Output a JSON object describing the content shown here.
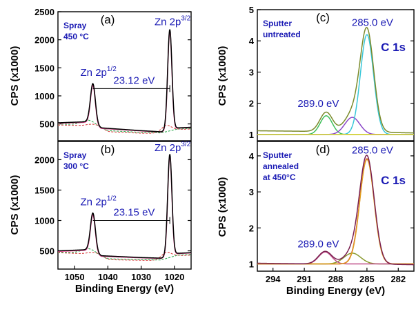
{
  "chart_data": [
    {
      "id": "a",
      "type": "line",
      "panel_label": "(a)",
      "note_lines": [
        "Spray",
        "450 °C"
      ],
      "xlim": [
        1055,
        1015
      ],
      "ylim": [
        200,
        2500
      ],
      "xticks": [],
      "yticks": [
        500,
        1000,
        1500,
        2000,
        2500
      ],
      "ylabel": "",
      "peaks": [
        {
          "name": "Zn 2p",
          "sup": "1/2",
          "x": 1044.5,
          "y": 1260
        },
        {
          "name": "Zn 2p",
          "sup": "3/2",
          "x": 1021.4,
          "y": 2160
        }
      ],
      "separation": "23.12 eV",
      "series": [
        {
          "color": "#000000",
          "baseline": [
            [
              1055,
              520
            ],
            [
              1046,
              540
            ],
            [
              1042,
              430
            ],
            [
              1030,
              380
            ],
            [
              1024,
              360
            ],
            [
              1019,
              430
            ],
            [
              1015,
              440
            ]
          ],
          "peaks": [
            [
              1044.5,
              720,
              0.75
            ],
            [
              1021.4,
              1790,
              0.65
            ]
          ]
        },
        {
          "color": "#e04b8f",
          "baseline": [
            [
              1055,
              510
            ],
            [
              1046,
              530
            ],
            [
              1042,
              420
            ],
            [
              1030,
              375
            ],
            [
              1024,
              355
            ],
            [
              1019,
              425
            ],
            [
              1015,
              435
            ]
          ],
          "peaks": [
            [
              1044.5,
              700,
              0.72
            ],
            [
              1021.4,
              1770,
              0.63
            ]
          ]
        },
        {
          "color": "#2fa84f",
          "dashed": true,
          "baseline": [
            [
              1055,
              500
            ],
            [
              1046,
              480
            ],
            [
              1040,
              380
            ],
            [
              1030,
              350
            ],
            [
              1024,
              340
            ],
            [
              1019,
              410
            ],
            [
              1015,
              420
            ]
          ],
          "peaks": [
            [
              1045.5,
              90,
              2.2
            ]
          ]
        },
        {
          "color": "#d94040",
          "dashed": true,
          "baseline": [
            [
              1055,
              480
            ],
            [
              1046,
              470
            ],
            [
              1040,
              360
            ],
            [
              1030,
              335
            ],
            [
              1024,
              330
            ],
            [
              1019,
              400
            ],
            [
              1015,
              410
            ]
          ],
          "peaks": [
            [
              1043.5,
              60,
              1.8
            ],
            [
              1022.5,
              120,
              1.6
            ]
          ]
        }
      ]
    },
    {
      "id": "b",
      "type": "line",
      "panel_label": "(b)",
      "note_lines": [
        "Spray",
        "300 °C"
      ],
      "xlim": [
        1055,
        1015
      ],
      "ylim": [
        200,
        2300
      ],
      "xticks": [
        1050,
        1040,
        1030,
        1020
      ],
      "yticks": [
        500,
        1000,
        1500,
        2000
      ],
      "xlabel": "Binding Energy (eV)",
      "peaks": [
        {
          "name": "Zn 2p",
          "sup": "1/2",
          "x": 1044.5,
          "y": 1160
        },
        {
          "name": "Zn 2p",
          "sup": "3/2",
          "x": 1021.4,
          "y": 2050
        }
      ],
      "separation": "23.15 eV",
      "series": [
        {
          "color": "#000000",
          "baseline": [
            [
              1055,
              500
            ],
            [
              1046,
              520
            ],
            [
              1042,
              420
            ],
            [
              1030,
              390
            ],
            [
              1024,
              380
            ],
            [
              1019,
              460
            ],
            [
              1015,
              470
            ]
          ],
          "peaks": [
            [
              1044.5,
              640,
              0.75
            ],
            [
              1021.4,
              1670,
              0.65
            ]
          ]
        },
        {
          "color": "#e04b8f",
          "baseline": [
            [
              1055,
              490
            ],
            [
              1046,
              510
            ],
            [
              1042,
              410
            ],
            [
              1030,
              385
            ],
            [
              1024,
              375
            ],
            [
              1019,
              455
            ],
            [
              1015,
              465
            ]
          ],
          "peaks": [
            [
              1044.5,
              620,
              0.72
            ],
            [
              1021.4,
              1650,
              0.63
            ]
          ]
        },
        {
          "color": "#2fa84f",
          "dashed": true,
          "baseline": [
            [
              1055,
              480
            ],
            [
              1046,
              460
            ],
            [
              1040,
              370
            ],
            [
              1030,
              355
            ],
            [
              1024,
              350
            ],
            [
              1019,
              430
            ],
            [
              1015,
              440
            ]
          ],
          "peaks": [
            [
              1045.5,
              80,
              2.2
            ]
          ]
        },
        {
          "color": "#d94040",
          "dashed": true,
          "baseline": [
            [
              1055,
              470
            ],
            [
              1046,
              450
            ],
            [
              1040,
              355
            ],
            [
              1030,
              345
            ],
            [
              1024,
              340
            ],
            [
              1019,
              420
            ],
            [
              1015,
              430
            ]
          ],
          "peaks": [
            [
              1043.5,
              55,
              1.8
            ],
            [
              1022.5,
              110,
              1.6
            ]
          ]
        }
      ]
    },
    {
      "id": "c",
      "type": "line",
      "panel_label": "(c)",
      "note_lines": [
        "Sputter",
        "untreated"
      ],
      "badge": "C 1s",
      "xlim": [
        295.5,
        280.5
      ],
      "ylim": [
        0.8,
        5
      ],
      "xticks": [],
      "yticks": [
        1,
        2,
        3,
        4,
        5
      ],
      "peaks": [
        {
          "label": "285.0 eV",
          "x": 285.0,
          "y": 4.35
        },
        {
          "label": "289.0 eV",
          "x": 289.0,
          "y": 1.75
        }
      ],
      "series": [
        {
          "color": "#7a8a2a",
          "baseline": [
            [
              295.5,
              1.12
            ],
            [
              290,
              1.1
            ],
            [
              285,
              1.08
            ],
            [
              280.5,
              1.05
            ]
          ],
          "peaks": [
            [
              285.0,
              3.25,
              0.65
            ],
            [
              286.4,
              0.55,
              0.75
            ],
            [
              288.9,
              0.62,
              0.6
            ]
          ]
        },
        {
          "color": "#e8d22a",
          "baseline": [
            [
              295.5,
              1.0
            ],
            [
              280.5,
              1.0
            ]
          ],
          "peaks": []
        },
        {
          "color": "#38c7d8",
          "baseline": [
            [
              295.5,
              1.0
            ],
            [
              280.5,
              1.0
            ]
          ],
          "peaks": [
            [
              285.0,
              3.2,
              0.63
            ]
          ]
        },
        {
          "color": "#8a46c8",
          "baseline": [
            [
              295.5,
              1.0
            ],
            [
              280.5,
              1.0
            ]
          ],
          "peaks": [
            [
              286.4,
              0.55,
              0.72
            ]
          ]
        },
        {
          "color": "#3fbf5a",
          "baseline": [
            [
              295.5,
              1.0
            ],
            [
              280.5,
              1.0
            ]
          ],
          "peaks": [
            [
              288.9,
              0.6,
              0.58
            ]
          ]
        }
      ]
    },
    {
      "id": "d",
      "type": "line",
      "panel_label": "(d)",
      "note_lines": [
        "Sputter",
        "annealed",
        "at 450°C"
      ],
      "badge": "C 1s",
      "xlim": [
        295.5,
        280.5
      ],
      "ylim": [
        0.8,
        4.4
      ],
      "xticks": [
        294,
        291,
        288,
        285,
        282
      ],
      "yticks": [
        1,
        2,
        3,
        4
      ],
      "xlabel": "Binding Energy (eV)",
      "peaks": [
        {
          "label": "285.0 eV",
          "x": 285.0,
          "y": 3.95
        },
        {
          "label": "289.0 eV",
          "x": 289.0,
          "y": 1.35
        }
      ],
      "series": [
        {
          "color": "#7a2050",
          "baseline": [
            [
              295.5,
              1.02
            ],
            [
              290,
              1.0
            ],
            [
              285,
              1.0
            ],
            [
              280.5,
              0.98
            ]
          ],
          "peaks": [
            [
              285.0,
              2.95,
              0.7
            ],
            [
              286.4,
              0.3,
              0.8
            ],
            [
              289.0,
              0.35,
              0.65
            ]
          ]
        },
        {
          "color": "#e0a020",
          "baseline": [
            [
              295.5,
              1.0
            ],
            [
              280.5,
              1.0
            ]
          ],
          "peaks": [
            [
              285.0,
              2.9,
              0.68
            ]
          ]
        },
        {
          "color": "#c0508a",
          "baseline": [
            [
              295.5,
              1.0
            ],
            [
              280.5,
              1.0
            ]
          ],
          "peaks": [
            [
              289.0,
              0.33,
              0.63
            ]
          ]
        },
        {
          "color": "#8a9a30",
          "baseline": [
            [
              295.5,
              1.0
            ],
            [
              280.5,
              1.0
            ]
          ],
          "peaks": [
            [
              286.4,
              0.3,
              0.8
            ]
          ]
        },
        {
          "color": "#d03030",
          "baseline": [
            [
              295.5,
              1.0
            ],
            [
              280.5,
              1.0
            ]
          ],
          "peaks": [
            [
              285.0,
              2.92,
              0.69
            ]
          ]
        }
      ]
    }
  ],
  "shared_ylabel": "CPS (x1000)"
}
